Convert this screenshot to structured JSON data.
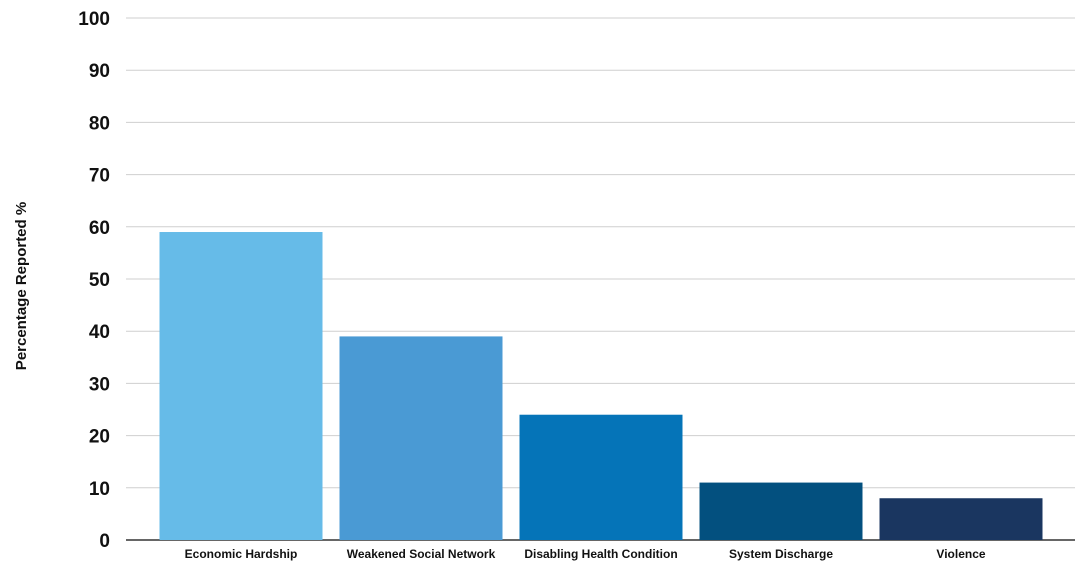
{
  "chart_data": {
    "type": "bar",
    "title": "",
    "xlabel": "",
    "ylabel": "Percentage Reported %",
    "ylim": [
      0,
      100
    ],
    "yticks": [
      0,
      10,
      20,
      30,
      40,
      50,
      60,
      70,
      80,
      90,
      100
    ],
    "grid": true,
    "legend": "none",
    "categories": [
      "Economic Hardship",
      "Weakened Social Network",
      "Disabling Health Condition",
      "System Discharge",
      "Violence"
    ],
    "values": [
      59,
      39,
      24,
      11,
      8
    ],
    "colors": [
      "#66bbe8",
      "#4a9ad4",
      "#0574b8",
      "#03507f",
      "#1a3660"
    ]
  }
}
